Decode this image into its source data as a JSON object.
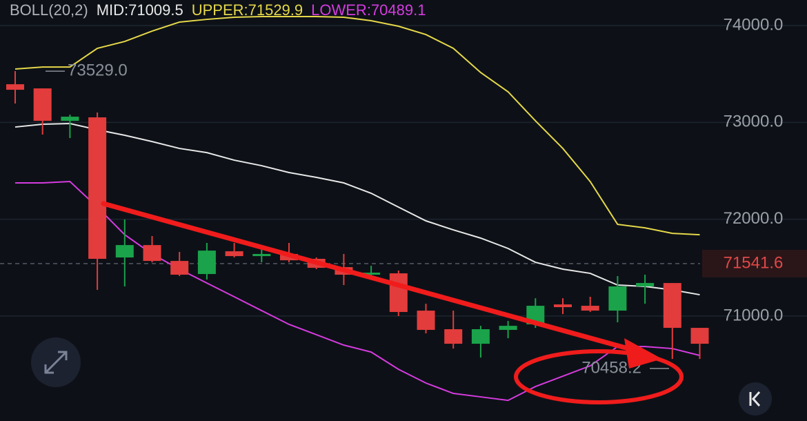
{
  "chart_data": {
    "type": "candlestick",
    "indicator": "BOLL(20,2)",
    "legend": [
      {
        "label": "MID:71009.5",
        "color": "#e8e8e8"
      },
      {
        "label": "UPPER:71529.9",
        "color": "#e6d84a"
      },
      {
        "label": "LOWER:70489.1",
        "color": "#d63be0"
      }
    ],
    "up_color": "#1aa34a",
    "down_color": "#e23c3c",
    "candles": [
      {
        "open": 73394,
        "high": 73530,
        "low": 73195,
        "close": 73337
      },
      {
        "open": 73351,
        "high": 73351,
        "low": 72874,
        "close": 73016
      },
      {
        "open": 73016,
        "high": 73080,
        "low": 72838,
        "close": 73059
      },
      {
        "open": 73052,
        "high": 73102,
        "low": 71270,
        "close": 71591
      },
      {
        "open": 71605,
        "high": 71997,
        "low": 71306,
        "close": 71733
      },
      {
        "open": 71733,
        "high": 71826,
        "low": 71555,
        "close": 71569
      },
      {
        "open": 71569,
        "high": 71662,
        "low": 71413,
        "close": 71427
      },
      {
        "open": 71434,
        "high": 71755,
        "low": 71377,
        "close": 71676
      },
      {
        "open": 71669,
        "high": 71755,
        "low": 71605,
        "close": 71619
      },
      {
        "open": 71619,
        "high": 71698,
        "low": 71555,
        "close": 71641
      },
      {
        "open": 71641,
        "high": 71755,
        "low": 71555,
        "close": 71576
      },
      {
        "open": 71591,
        "high": 71605,
        "low": 71484,
        "close": 71498
      },
      {
        "open": 71505,
        "high": 71641,
        "low": 71320,
        "close": 71427
      },
      {
        "open": 71427,
        "high": 71519,
        "low": 71377,
        "close": 71448
      },
      {
        "open": 71441,
        "high": 71470,
        "low": 70999,
        "close": 71042
      },
      {
        "open": 71056,
        "high": 71127,
        "low": 70821,
        "close": 70857
      },
      {
        "open": 70864,
        "high": 71056,
        "low": 70664,
        "close": 70714
      },
      {
        "open": 70714,
        "high": 70899,
        "low": 70571,
        "close": 70864
      },
      {
        "open": 70857,
        "high": 70949,
        "low": 70771,
        "close": 70899
      },
      {
        "open": 70914,
        "high": 71184,
        "low": 70878,
        "close": 71106
      },
      {
        "open": 71120,
        "high": 71184,
        "low": 71020,
        "close": 71092
      },
      {
        "open": 71106,
        "high": 71199,
        "low": 71042,
        "close": 71056
      },
      {
        "open": 71056,
        "high": 71413,
        "low": 70935,
        "close": 71306
      },
      {
        "open": 71306,
        "high": 71427,
        "low": 71127,
        "close": 71341
      },
      {
        "open": 71341,
        "high": 71341,
        "low": 70557,
        "close": 70878
      },
      {
        "open": 70878,
        "high": 70878,
        "low": 70557,
        "close": 70714
      }
    ],
    "bands": [
      {
        "color": "#e8e8e8",
        "values": [
          72952,
          72981,
          72988,
          72924,
          72867,
          72802,
          72731,
          72688,
          72610,
          72553,
          72482,
          72432,
          72375,
          72268,
          72125,
          71983,
          71890,
          71805,
          71698,
          71555,
          71484,
          71441,
          71320,
          71306,
          71270,
          71220
        ]
      },
      {
        "color": "#e6d84a",
        "values": [
          73551,
          73572,
          73572,
          73765,
          73836,
          73943,
          74036,
          74064,
          74086,
          74093,
          74093,
          74093,
          74086,
          74050,
          73993,
          73907,
          73765,
          73515,
          73316,
          73016,
          72731,
          72389,
          71947,
          71911,
          71854,
          71840
        ]
      },
      {
        "color": "#d63be0",
        "values": [
          72375,
          72375,
          72389,
          72125,
          71840,
          71641,
          71484,
          71341,
          71199,
          71056,
          70914,
          70807,
          70700,
          70628,
          70450,
          70308,
          70201,
          70165,
          70129,
          70272,
          70379,
          70486,
          70685,
          70685,
          70664,
          70593
        ]
      }
    ],
    "max_marker": {
      "value": 73529,
      "label": "73529.0"
    },
    "min_marker": {
      "value": 70458.2,
      "label": "70458.2"
    },
    "last_price": 71541.6,
    "ylim": [
      69916,
      74264
    ],
    "yticks": [
      {
        "value": 71000,
        "label": "71000.0"
      },
      {
        "value": 72000,
        "label": "72000.0"
      },
      {
        "value": 73000,
        "label": "73000.0"
      },
      {
        "value": 74000,
        "label": "74000.0"
      }
    ],
    "grid": true
  }
}
